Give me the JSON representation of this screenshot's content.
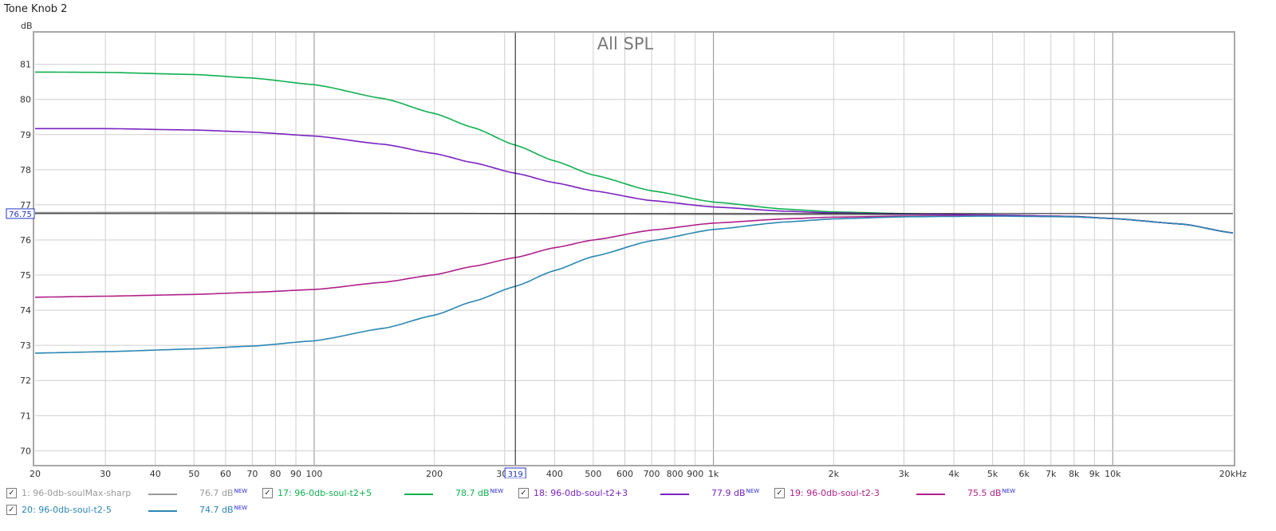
{
  "window": {
    "title": "Tone Knob 2"
  },
  "cursor": {
    "level_label": "76.75",
    "freq_label": "319"
  },
  "legend": [
    {
      "index_name": "1: 96-0db-soulMax-sharp",
      "value": "76.7 dB",
      "badge": "NEW",
      "checked": true,
      "color": "#9b9b9b"
    },
    {
      "index_name": "17: 96-0db-soul-t2+5",
      "value": "78.7 dB",
      "badge": "NEW",
      "checked": true,
      "color": "#10b050"
    },
    {
      "index_name": "18: 96-0db-soul-t2+3",
      "value": "77.9 dB",
      "badge": "NEW",
      "checked": true,
      "color": "#7a22c0"
    },
    {
      "index_name": "19: 96-0db-soul-t2-3",
      "value": "75.5 dB",
      "badge": "NEW",
      "checked": true,
      "color": "#b0208a"
    },
    {
      "index_name": "20: 96-0db-soul-t2-5",
      "value": "74.7 dB",
      "badge": "NEW",
      "checked": true,
      "color": "#2a86b4"
    }
  ],
  "chart_data": {
    "type": "line",
    "title": "All SPL",
    "ylabel": "dB",
    "xlabel": "",
    "x_scale": "log",
    "xlim": [
      20,
      20000
    ],
    "ylim": [
      69.6,
      81.9
    ],
    "grid": true,
    "x_ticks": [
      {
        "v": 20,
        "label": "20"
      },
      {
        "v": 30,
        "label": "30"
      },
      {
        "v": 40,
        "label": "40"
      },
      {
        "v": 50,
        "label": "50"
      },
      {
        "v": 60,
        "label": "60"
      },
      {
        "v": 70,
        "label": "70"
      },
      {
        "v": 80,
        "label": "80"
      },
      {
        "v": 90,
        "label": "90"
      },
      {
        "v": 100,
        "label": "100"
      },
      {
        "v": 200,
        "label": "200"
      },
      {
        "v": 300,
        "label": "300"
      },
      {
        "v": 400,
        "label": "400"
      },
      {
        "v": 500,
        "label": "500"
      },
      {
        "v": 600,
        "label": "600"
      },
      {
        "v": 700,
        "label": "700"
      },
      {
        "v": 800,
        "label": "800"
      },
      {
        "v": 900,
        "label": "900"
      },
      {
        "v": 1000,
        "label": "1k"
      },
      {
        "v": 2000,
        "label": "2k"
      },
      {
        "v": 3000,
        "label": "3k"
      },
      {
        "v": 4000,
        "label": "4k"
      },
      {
        "v": 5000,
        "label": "5k"
      },
      {
        "v": 6000,
        "label": "6k"
      },
      {
        "v": 7000,
        "label": "7k"
      },
      {
        "v": 8000,
        "label": "8k"
      },
      {
        "v": 9000,
        "label": "9k"
      },
      {
        "v": 10000,
        "label": "10k"
      },
      {
        "v": 20000,
        "label": "20kHz"
      }
    ],
    "y_ticks": [
      70,
      71,
      72,
      73,
      74,
      75,
      76,
      77,
      78,
      79,
      80,
      81
    ],
    "cursor": {
      "x": 319,
      "y": 76.75
    },
    "series": [
      {
        "name": "1: 96-0db-soulMax-sharp",
        "color": "#9b9b9b",
        "x": [
          20,
          50,
          100,
          200,
          319,
          500,
          1000,
          2000,
          3000,
          5000,
          8000,
          10000,
          15000,
          20000
        ],
        "y": [
          76.78,
          76.79,
          76.78,
          76.76,
          76.75,
          76.74,
          76.73,
          76.72,
          76.72,
          76.7,
          76.67,
          76.61,
          76.45,
          76.2
        ]
      },
      {
        "name": "17: 96-0db-soul-t2+5",
        "color": "#10b050",
        "x": [
          20,
          30,
          50,
          70,
          100,
          150,
          200,
          250,
          319,
          400,
          500,
          700,
          1000,
          1500,
          2000,
          3000,
          5000,
          8000,
          10000,
          15000,
          20000
        ],
        "y": [
          80.78,
          80.77,
          80.71,
          80.61,
          80.42,
          80.02,
          79.6,
          79.2,
          78.7,
          78.25,
          77.85,
          77.4,
          77.08,
          76.88,
          76.8,
          76.75,
          76.71,
          76.67,
          76.61,
          76.45,
          76.2
        ]
      },
      {
        "name": "18: 96-0db-soul-t2+3",
        "color": "#7a22c0",
        "x": [
          20,
          30,
          50,
          70,
          100,
          150,
          200,
          250,
          319,
          400,
          500,
          700,
          1000,
          1500,
          2000,
          3000,
          5000,
          8000,
          10000,
          15000,
          20000
        ],
        "y": [
          79.17,
          79.17,
          79.13,
          79.07,
          78.96,
          78.72,
          78.46,
          78.2,
          77.9,
          77.63,
          77.4,
          77.12,
          76.94,
          76.82,
          76.77,
          76.74,
          76.71,
          76.67,
          76.61,
          76.45,
          76.2
        ]
      },
      {
        "name": "19: 96-0db-soul-t2-3",
        "color": "#b0208a",
        "x": [
          20,
          30,
          50,
          70,
          100,
          150,
          200,
          250,
          319,
          400,
          500,
          700,
          1000,
          1500,
          2000,
          3000,
          5000,
          8000,
          10000,
          15000,
          20000
        ],
        "y": [
          74.37,
          74.4,
          74.45,
          74.51,
          74.59,
          74.8,
          75.01,
          75.25,
          75.5,
          75.78,
          76.0,
          76.28,
          76.48,
          76.6,
          76.65,
          76.68,
          76.69,
          76.66,
          76.61,
          76.45,
          76.2
        ]
      },
      {
        "name": "20: 96-0db-soul-t2-5",
        "color": "#2a86b4",
        "x": [
          20,
          30,
          50,
          70,
          100,
          150,
          200,
          250,
          319,
          400,
          500,
          700,
          1000,
          1500,
          2000,
          3000,
          5000,
          8000,
          10000,
          15000,
          20000
        ],
        "y": [
          72.78,
          72.82,
          72.9,
          72.98,
          73.13,
          73.49,
          73.86,
          74.25,
          74.68,
          75.13,
          75.53,
          75.98,
          76.3,
          76.51,
          76.6,
          76.66,
          76.68,
          76.66,
          76.61,
          76.45,
          76.2
        ]
      }
    ]
  }
}
